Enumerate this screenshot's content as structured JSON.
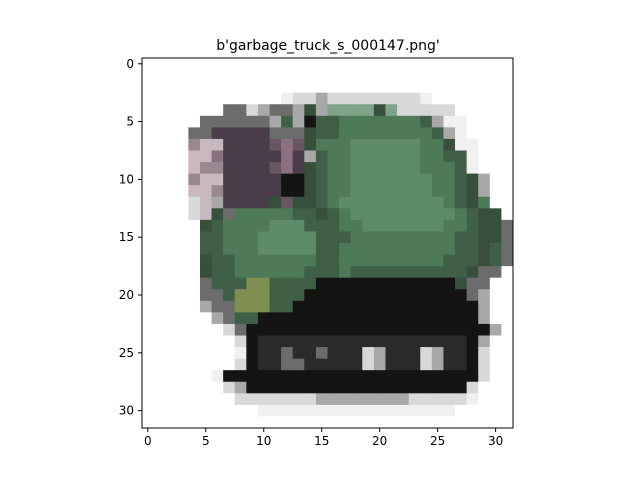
{
  "chart_data": {
    "type": "image",
    "title": "b'garbage_truck_s_000147.png'",
    "xlabel": "",
    "ylabel": "",
    "xlim": [
      -0.5,
      31.5
    ],
    "ylim": [
      31.5,
      -0.5
    ],
    "x_ticks": [
      0,
      5,
      10,
      15,
      20,
      25,
      30
    ],
    "y_ticks": [
      0,
      5,
      10,
      15,
      20,
      25,
      30
    ],
    "grid": false,
    "legend": "none",
    "image_size": [
      32,
      32
    ],
    "palette": {
      "w": "#ffffff",
      "p": "#f0f0f0",
      "l": "#d8d8d8",
      "g": "#a8a8a8",
      "G": "#6c6c6c",
      "d": "#4a3c48",
      "m": "#6a5660",
      "k": "#141414",
      "n": "#2a2a2a",
      "a": "#3f5f47",
      "b": "#4f7a58",
      "c": "#5f8c68",
      "e": "#7fa386",
      "f": "#37503c",
      "q": "#c8b8c0",
      "r": "#9a8890",
      "s": "#8a7080",
      "o": "#7f8f52"
    },
    "rows": [
      "wwwwwwwwwwwwwwwwwwwwwwwwwwwwwwww",
      "wwwwwwwwwwwwwwwwwwwwwwwwwwwwwwww",
      "wwwwwwwwwwwwwwwwwwwwwwwwwwwwwwww",
      "wwwwwwwwwwwwpllgllllllllpwwwwwww",
      "wwwwwwwGGlgGGgfgeeeefelllllwwwww",
      "wwwwwGGGGGGgagkaabbbbbbbagppwwww",
      "wwwwGGdddddGGGfaabbbbbbbbagpwwww",
      "wwwwrqqddddmsmfbbbccccccbbfppwww",
      "wwwwqqsdddddsdgabbccccccbbaapwww",
      "wwwwqrrddddmsdfabbccccccbbbapwww",
      "wwwwrqqdddddkkfabbcccccccbbafgww",
      "wwwwqqrdddddkkfabbcccccccbbafgww",
      "wwwwlqgddddfmffabcccccccccbafbww",
      "wwwwlqfGbbbbbaafabcccccccccbaffww",
      "wwwwwfabbbbcccaaabbcccccccbbaffGw",
      "wwwwwaabbbcccccaaabbbbbbbbbaaffGG",
      "wwwwwaabbbcccccaabbbbbbbbbbaafaGG",
      "wwwwwfaabbbbbbbaabbbbbbbbbaaafaGG",
      "wwwwwfaabbbbbbaaabaaaaaaaaaafGGw",
      "wwwwwGaaaooaaaakkkkkkkkkkkkfGGww",
      "wwwwwGGaoooaaakkkkkkkkkkkkkkGgww",
      "wwwwwgGGoooaakkkkkkkkkkkkkkkkgww",
      "wwwwwwgGaakkkkkkkkkkkkkkkkkkkgww",
      "wwwwwwwlGkkkkkkkkkkkkkkkkkkkkkgw",
      "wwwwwwwwlknnnnnnnnnnnnnnnnnnkgww",
      "wwwwwwwwpknnGnnGnnnlgnnnlgnnklww",
      "wwwwwwwwlknnGGnnnnnlgnnnlgnnklww",
      "wwwwwwpkkkkkkkkkkkkkkkkkkkkkklww",
      "wwwwwwwlgkkkkkkkkkkkkkkkkkkklwww",
      "wwwwwwwwlllllllgggggggglllllpwww",
      "wwwwwwwwwwpppppppppppppppppwwwww",
      "wwwwwwwwwwwwwwwwwwwwwwwwwwwwwwww"
    ]
  }
}
